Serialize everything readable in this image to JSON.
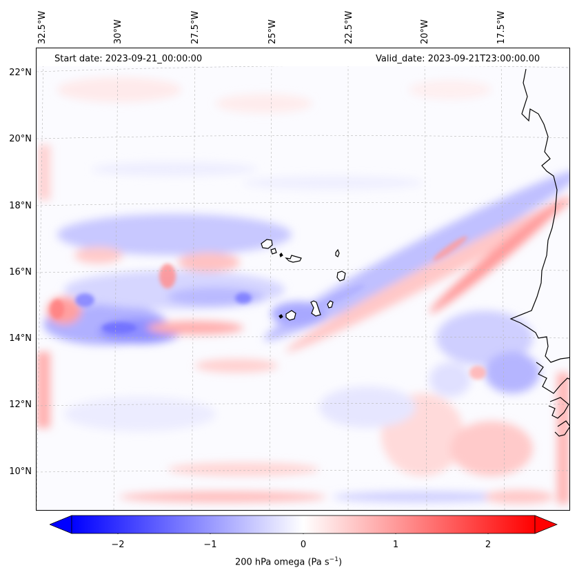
{
  "header": {
    "start_date": "Start date: 2023-09-21_00:00:00",
    "valid_date": "Valid_date: 2023-09-21T23:00:00.00"
  },
  "map": {
    "lat_labels": [
      "22°N",
      "20°N",
      "18°N",
      "16°N",
      "14°N",
      "12°N",
      "10°N"
    ],
    "lon_labels": [
      "32.5°W",
      "30°W",
      "27.5°W",
      "25°W",
      "22.5°W",
      "20°W",
      "17.5°W"
    ],
    "field": "200 hPa omega",
    "colormap": "bwr",
    "colors": {
      "negative": "#0000ff",
      "zero": "#ffffff",
      "positive": "#ff0000",
      "coast": "#000000"
    }
  },
  "colorbar": {
    "ticks": [
      "−2",
      "−1",
      "0",
      "1",
      "2"
    ],
    "range": [
      -2.7,
      2.7
    ],
    "extend": "both",
    "label": "200 hPa omega (Pa s",
    "label_exp": "−1",
    "label_end": ")"
  }
}
